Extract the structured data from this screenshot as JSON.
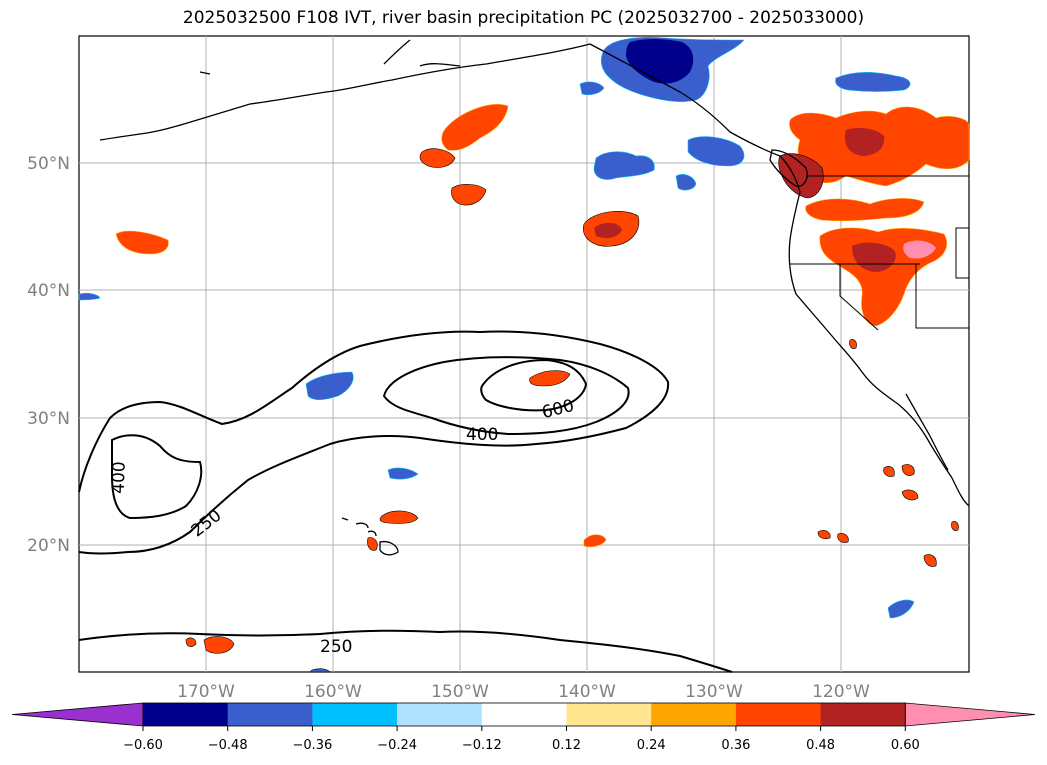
{
  "title": "2025032500 F108 IVT, river basin precipitation PC (2025032700 - 2025033000)",
  "lat_labels": [
    "50°N",
    "40°N",
    "30°N",
    "20°N"
  ],
  "lon_labels": [
    "170°W",
    "160°W",
    "150°W",
    "140°W",
    "130°W",
    "120°W"
  ],
  "contour_labels": [
    "400",
    "600",
    "400",
    "250",
    "250"
  ],
  "colorbar": {
    "ticks": [
      "−0.60",
      "−0.48",
      "−0.36",
      "−0.24",
      "−0.12",
      "0.12",
      "0.24",
      "0.36",
      "0.48",
      "0.60"
    ],
    "colors": [
      "#9b30d0",
      "#00008b",
      "#3a5fcd",
      "#00bfff",
      "#b0e2ff",
      "#ffffff",
      "#ffe68f",
      "#ffa500",
      "#ff4500",
      "#b22222",
      "#ff8fb1"
    ]
  },
  "colors": {
    "grid": "#b0b0b0",
    "coast": "#000000",
    "contour": "#000000"
  }
}
